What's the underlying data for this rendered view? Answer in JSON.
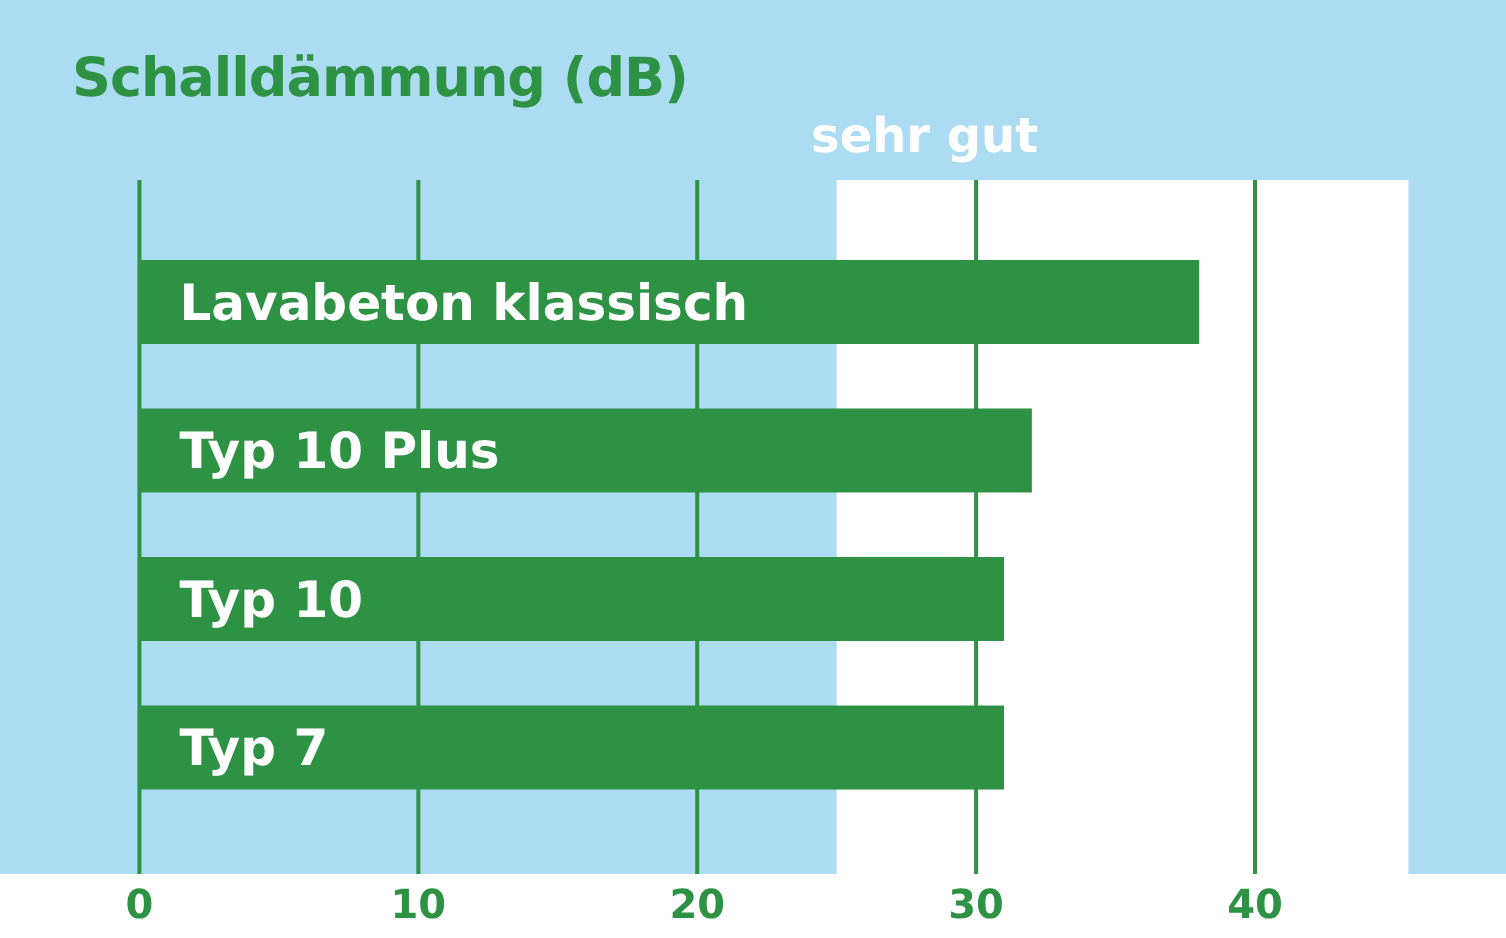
{
  "chart_data": {
    "type": "bar",
    "orientation": "horizontal",
    "title": "Schalldämmung (dB)",
    "categories": [
      "Lavabeton klassisch",
      "Typ 10 Plus",
      "Typ 10",
      "Typ 7"
    ],
    "values": [
      38,
      32,
      31,
      31
    ],
    "color": "#2e9245",
    "xlim": [
      -5,
      49
    ],
    "xticks": [
      0,
      10,
      20,
      30,
      40
    ],
    "grid": "x",
    "bands": [
      {
        "axis": "x",
        "from": 25,
        "to": 45.5,
        "label": "sehr gut",
        "color": "#ffffff"
      }
    ]
  }
}
